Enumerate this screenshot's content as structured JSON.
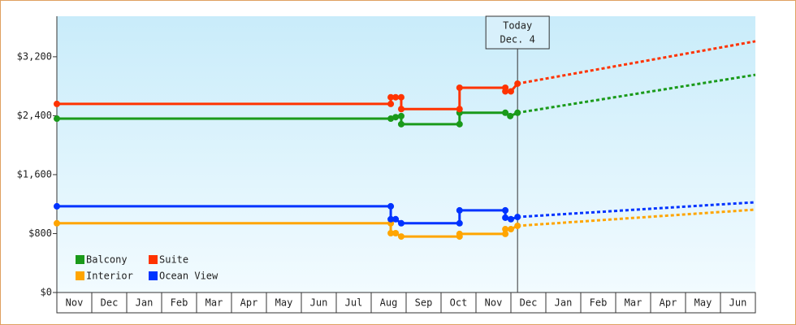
{
  "chart_data": {
    "type": "line",
    "months": [
      "Nov",
      "Dec",
      "Jan",
      "Feb",
      "Mar",
      "Apr",
      "May",
      "Jun",
      "Jul",
      "Aug",
      "Sep",
      "Oct",
      "Nov",
      "Dec",
      "Jan",
      "Feb",
      "Mar",
      "Apr",
      "May",
      "Jun"
    ],
    "xlim": [
      0,
      20
    ],
    "ylim": [
      0,
      3750
    ],
    "yticks": [
      {
        "value": 0,
        "label": "$0"
      },
      {
        "value": 800,
        "label": "$800"
      },
      {
        "value": 1600,
        "label": "$1,600"
      },
      {
        "value": 2400,
        "label": "$2,400"
      },
      {
        "value": 3200,
        "label": "$3,200"
      }
    ],
    "annotation": {
      "x": 13.19,
      "lines": [
        "Today",
        "Dec. 4"
      ]
    },
    "series": [
      {
        "name": "Balcony",
        "color": "#1a9a1a",
        "x": [
          0,
          9.56,
          9.7,
          9.86,
          9.86,
          11.53,
          11.53,
          12.84,
          12.98,
          13.19
        ],
        "values": [
          2360,
          2360,
          2380,
          2395,
          2285,
          2285,
          2440,
          2440,
          2395,
          2440
        ],
        "forecast": {
          "x": [
            13.19,
            20
          ],
          "values": [
            2440,
            2955
          ]
        }
      },
      {
        "name": "Suite",
        "color": "#ff3300",
        "x": [
          0,
          9.56,
          9.56,
          9.7,
          9.86,
          9.86,
          11.53,
          11.53,
          12.84,
          12.84,
          13.0,
          13.19
        ],
        "values": [
          2560,
          2560,
          2650,
          2650,
          2650,
          2490,
          2490,
          2780,
          2780,
          2730,
          2730,
          2835
        ],
        "forecast": {
          "x": [
            13.19,
            20
          ],
          "values": [
            2835,
            3410
          ]
        }
      },
      {
        "name": "Interior",
        "color": "#ffa500",
        "x": [
          0,
          9.56,
          9.56,
          9.7,
          9.86,
          11.53,
          11.53,
          12.84,
          12.84,
          13.0,
          13.19
        ],
        "values": [
          940,
          940,
          805,
          805,
          760,
          760,
          795,
          795,
          860,
          860,
          905
        ],
        "forecast": {
          "x": [
            13.19,
            20
          ],
          "values": [
            905,
            1125
          ]
        }
      },
      {
        "name": "Ocean View",
        "color": "#0033ff",
        "x": [
          0,
          9.56,
          9.56,
          9.7,
          9.86,
          11.53,
          11.53,
          12.84,
          12.84,
          13.0,
          13.19
        ],
        "values": [
          1170,
          1170,
          995,
          995,
          940,
          940,
          1115,
          1115,
          1015,
          995,
          1025
        ],
        "forecast": {
          "x": [
            13.19,
            20
          ],
          "values": [
            1025,
            1225
          ]
        }
      }
    ]
  }
}
